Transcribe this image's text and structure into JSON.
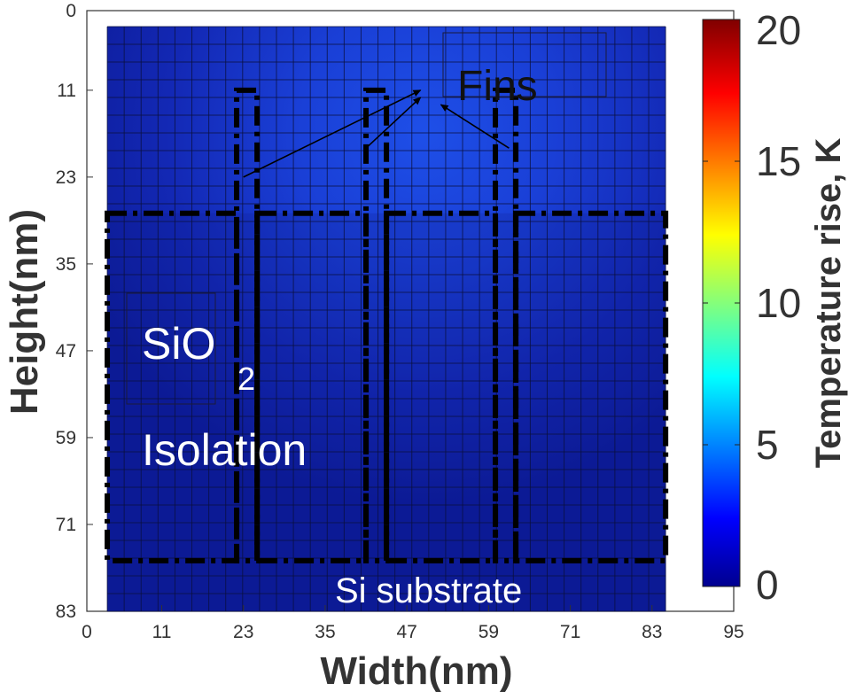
{
  "chart_data": {
    "type": "heatmap",
    "xlabel": "Width(nm)",
    "ylabel": "Height(nm)",
    "xlim": [
      0,
      95
    ],
    "ylim": [
      0,
      83
    ],
    "y_axis_direction": "top-to-bottom",
    "xticks": [
      0,
      11,
      23,
      35,
      47,
      59,
      71,
      83,
      95
    ],
    "yticks": [
      0,
      11,
      23,
      35,
      47,
      59,
      71,
      83
    ],
    "data_extent": {
      "x": [
        3,
        85
      ],
      "y": [
        0,
        83
      ]
    },
    "grid_cells": {
      "columns": 33,
      "rows": 33
    },
    "colorbar": {
      "label": "Temperature rise, K",
      "range": [
        0,
        20
      ],
      "ticks": [
        0,
        5,
        10,
        15,
        20
      ],
      "colormap": "jet",
      "stops": [
        "#00008f",
        "#0000ff",
        "#00ffff",
        "#ffff00",
        "#ff0000",
        "#800000"
      ]
    },
    "temperature_field": {
      "description": "all values near the low end of the scale (about 0.5 to 2.5 K)",
      "hotspot": {
        "x": 47,
        "y": 16,
        "value": 2.4
      },
      "background": 0.6
    },
    "annotations": {
      "fins": "Fins",
      "oxide_line1": "SiO",
      "oxide_sub": "2",
      "oxide_line2": "Isolation",
      "substrate": "Si substrate"
    },
    "regions": {
      "fins": [
        {
          "x": [
            22,
            25
          ],
          "y": [
            11,
            76
          ]
        },
        {
          "x": [
            41,
            44
          ],
          "y": [
            11,
            76
          ]
        },
        {
          "x": [
            60,
            63
          ],
          "y": [
            11,
            76
          ]
        }
      ],
      "oxide_blocks": [
        {
          "x": [
            3,
            22
          ],
          "y": [
            28,
            76
          ]
        },
        {
          "x": [
            25,
            41
          ],
          "y": [
            28,
            76
          ]
        },
        {
          "x": [
            44,
            60
          ],
          "y": [
            28,
            76
          ]
        },
        {
          "x": [
            63,
            85
          ],
          "y": [
            28,
            76
          ]
        }
      ],
      "oxide_top_y": 28,
      "substrate_y": [
        76,
        83
      ]
    },
    "arrows": [
      {
        "from": [
          23,
          23
        ],
        "to": [
          49,
          11
        ]
      },
      {
        "from": [
          41,
          19
        ],
        "to": [
          49,
          12
        ]
      },
      {
        "from": [
          62,
          19
        ],
        "to": [
          52,
          13
        ]
      }
    ]
  }
}
